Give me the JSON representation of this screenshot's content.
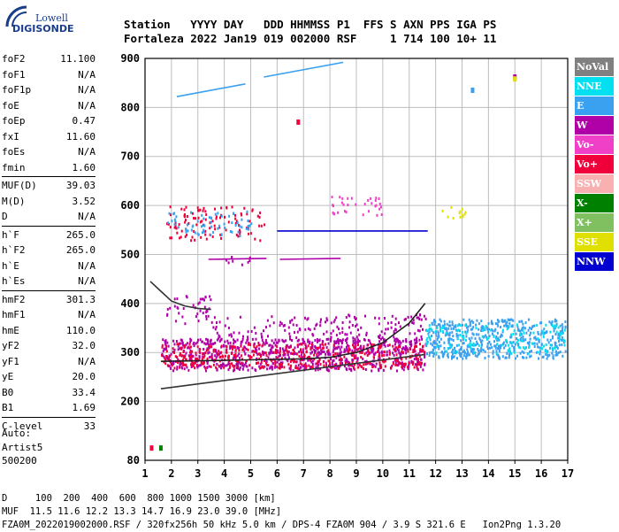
{
  "logo": {
    "line1": "Lowell",
    "line2": "DIGISONDE"
  },
  "header": {
    "line1": "Station   YYYY DAY   DDD HHMMSS P1  FFS S AXN PPS IGA PS",
    "line2": "Fortaleza 2022 Jan19 019 002000 RSF     1 714 100 10+ 11"
  },
  "params": [
    [
      {
        "name": "foF2",
        "value": "11.100"
      },
      {
        "name": "foF1",
        "value": "N/A"
      },
      {
        "name": "foF1p",
        "value": "N/A"
      },
      {
        "name": "foE",
        "value": "N/A"
      },
      {
        "name": "foEp",
        "value": "0.47"
      },
      {
        "name": "fxI",
        "value": "11.60"
      },
      {
        "name": "foEs",
        "value": "N/A"
      },
      {
        "name": "fmin",
        "value": "1.60"
      }
    ],
    [
      {
        "name": "MUF(D)",
        "value": "39.03"
      },
      {
        "name": "M(D)",
        "value": "3.52"
      },
      {
        "name": "D",
        "value": "N/A"
      }
    ],
    [
      {
        "name": "h`F",
        "value": "265.0"
      },
      {
        "name": "h`F2",
        "value": "265.0"
      },
      {
        "name": "h`E",
        "value": "N/A"
      },
      {
        "name": "h`Es",
        "value": "N/A"
      }
    ],
    [
      {
        "name": "hmF2",
        "value": "301.3"
      },
      {
        "name": "hmF1",
        "value": "N/A"
      },
      {
        "name": "hmE",
        "value": "110.0"
      },
      {
        "name": "yF2",
        "value": "32.0"
      },
      {
        "name": "yF1",
        "value": "N/A"
      },
      {
        "name": "yE",
        "value": "20.0"
      },
      {
        "name": "B0",
        "value": "33.4"
      },
      {
        "name": "B1",
        "value": "1.69"
      }
    ],
    [
      {
        "name": "C-level",
        "value": "33"
      }
    ]
  ],
  "auto": {
    "line1": "Auto:",
    "line2": "Artist5",
    "line3": "500200"
  },
  "footer": {
    "line1": "D     100  200  400  600  800 1000 1500 3000 [km]",
    "line2": "MUF  11.5 11.6 12.2 13.3 14.7 16.9 23.0 39.0 [MHz]",
    "line3": "FZA0M_2022019002000.RSF / 320fx256h 50 kHz 5.0 km / DPS-4 FZA0M 904 / 3.9 S 321.6 E   Ion2Png 1.3.20"
  },
  "legend": [
    {
      "label": "NoVal",
      "color": "#808080",
      "text_color": "#ffffff"
    },
    {
      "label": "NNE",
      "color": "#00e0f0",
      "text_color": "#ffffff"
    },
    {
      "label": "E",
      "color": "#3aa0f0",
      "text_color": "#ffffff"
    },
    {
      "label": "W",
      "color": "#b000a8",
      "text_color": "#ffffff"
    },
    {
      "label": "Vo-",
      "color": "#f040c8",
      "text_color": "#ffffff"
    },
    {
      "label": "Vo+",
      "color": "#f0003a",
      "text_color": "#ffffff"
    },
    {
      "label": "SSW",
      "color": "#f8b0b0",
      "text_color": "#ffffff"
    },
    {
      "label": "X-",
      "color": "#008000",
      "text_color": "#ffffff"
    },
    {
      "label": "X+",
      "color": "#80c060",
      "text_color": "#ffffff"
    },
    {
      "label": "SSE",
      "color": "#e0e000",
      "text_color": "#ffffff"
    },
    {
      "label": "NNW",
      "color": "#0000d0",
      "text_color": "#ffffff"
    }
  ],
  "chart_data": {
    "type": "scatter",
    "title": "",
    "xlabel": "",
    "ylabel": "",
    "xlim": [
      1,
      17
    ],
    "ylim": [
      80,
      900
    ],
    "x_ticks": [
      "1",
      "2",
      "3",
      "4",
      "5",
      "6",
      "7",
      "8",
      "9",
      "10",
      "11",
      "12",
      "13",
      "14",
      "15",
      "16",
      "17"
    ],
    "y_ticks": [
      "80",
      "200",
      "300",
      "400",
      "500",
      "600",
      "700",
      "800",
      "900"
    ],
    "grid": true,
    "bands": [
      {
        "x": [
          1.6,
          11.6
        ],
        "y": [
          265,
          330
        ],
        "color": "#b000a8",
        "weight": 3
      },
      {
        "x": [
          1.6,
          11.6
        ],
        "y": [
          270,
          320
        ],
        "color": "#f0003a",
        "weight": 2
      },
      {
        "x": [
          3.5,
          11.6
        ],
        "y": [
          320,
          380
        ],
        "color": "#b000a8",
        "weight": 1
      },
      {
        "x": [
          11.6,
          16.9
        ],
        "y": [
          290,
          370
        ],
        "color": "#3aa0f0",
        "weight": 3
      },
      {
        "x": [
          11.6,
          16.9
        ],
        "y": [
          300,
          360
        ],
        "color": "#00e0f0",
        "weight": 1
      },
      {
        "x": [
          1.8,
          3.5
        ],
        "y": [
          360,
          420
        ],
        "color": "#b000a8",
        "weight": 1
      },
      {
        "x": [
          1.8,
          5.5
        ],
        "y": [
          530,
          600
        ],
        "color": "#f0003a",
        "weight": 1
      },
      {
        "x": [
          1.8,
          5.0
        ],
        "y": [
          540,
          590
        ],
        "color": "#3aa0f0",
        "weight": 1
      },
      {
        "x": [
          4.0,
          5.0
        ],
        "y": [
          480,
          500
        ],
        "color": "#b000a8",
        "weight": 1
      },
      {
        "x": [
          12.2,
          13.2
        ],
        "y": [
          570,
          600
        ],
        "color": "#e0e000",
        "weight": 1
      },
      {
        "x": [
          8.0,
          10.0
        ],
        "y": [
          580,
          620
        ],
        "color": "#f040c8",
        "weight": 1
      }
    ],
    "lines": [
      {
        "x": [
          6.0,
          11.7
        ],
        "y": [
          548,
          548
        ],
        "color": "#0000d0"
      },
      {
        "x": [
          2.2,
          4.8
        ],
        "y": [
          822,
          848
        ],
        "color": "#3aa0f0"
      },
      {
        "x": [
          5.5,
          8.5
        ],
        "y": [
          862,
          892
        ],
        "color": "#3aa0f0"
      },
      {
        "x": [
          3.4,
          5.6
        ],
        "y": [
          490,
          492
        ],
        "color": "#b000a8"
      },
      {
        "x": [
          6.1,
          8.4
        ],
        "y": [
          490,
          492
        ],
        "color": "#b000a8"
      },
      {
        "x": [
          1.6,
          11.6
        ],
        "y": [
          226,
          296
        ],
        "color": "#333333"
      },
      {
        "x": [
          1.2,
          1.6,
          2.0,
          2.5,
          3.0,
          3.5
        ],
        "y": [
          445,
          425,
          405,
          395,
          390,
          388
        ],
        "color": "#333333"
      },
      {
        "x": [
          1.6,
          3,
          5,
          7,
          8,
          9,
          10,
          11,
          11.6
        ],
        "y": [
          282,
          283,
          285,
          287,
          290,
          300,
          320,
          360,
          400
        ],
        "color": "#222222"
      }
    ],
    "points": [
      {
        "x": 1.25,
        "y": 105,
        "color": "#f0003a"
      },
      {
        "x": 1.6,
        "y": 105,
        "color": "#008000"
      },
      {
        "x": 15.0,
        "y": 862,
        "color": "#b000a8"
      },
      {
        "x": 15.0,
        "y": 858,
        "color": "#e0e000"
      },
      {
        "x": 13.4,
        "y": 835,
        "color": "#3aa0f0"
      },
      {
        "x": 6.8,
        "y": 770,
        "color": "#f0003a"
      }
    ]
  }
}
